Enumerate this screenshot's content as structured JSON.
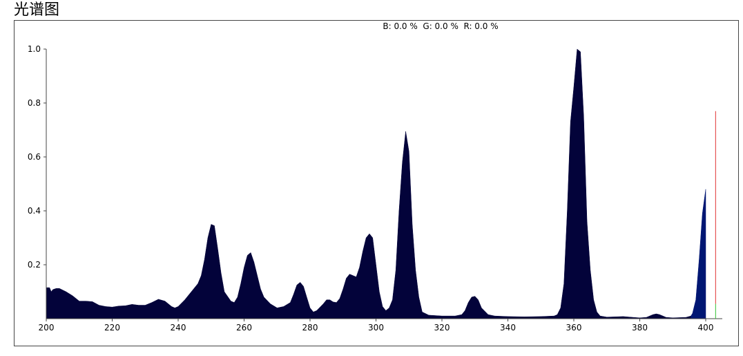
{
  "window_title": "光谱图",
  "chart_data": {
    "type": "area",
    "title": "",
    "xlabel": "",
    "ylabel": "",
    "readout": "B: 0.0 %  G: 0.0 %  R: 0.0 %",
    "xlim": [
      200,
      405
    ],
    "ylim": [
      0,
      1.0
    ],
    "xticks": [
      200,
      220,
      240,
      260,
      280,
      300,
      320,
      340,
      360,
      380,
      400
    ],
    "yticks": [
      0.2,
      0.4,
      0.6,
      0.8,
      1.0
    ],
    "grid": false,
    "colors": {
      "main": "#03033a",
      "blue_region": "#001673",
      "cursor": "#e03030",
      "cursor_base": "#30c030",
      "axis": "#444444"
    },
    "series": [
      {
        "color_key": "main",
        "points": [
          [
            200,
            0.115
          ],
          [
            201,
            0.115
          ],
          [
            201.5,
            0.1
          ],
          [
            202,
            0.108
          ],
          [
            203,
            0.112
          ],
          [
            204,
            0.112
          ],
          [
            206,
            0.1
          ],
          [
            208,
            0.085
          ],
          [
            210,
            0.065
          ],
          [
            212,
            0.065
          ],
          [
            214,
            0.063
          ],
          [
            216,
            0.05
          ],
          [
            218,
            0.045
          ],
          [
            220,
            0.043
          ],
          [
            222,
            0.047
          ],
          [
            224,
            0.048
          ],
          [
            226,
            0.053
          ],
          [
            228,
            0.05
          ],
          [
            230,
            0.05
          ],
          [
            232,
            0.06
          ],
          [
            234,
            0.072
          ],
          [
            236,
            0.065
          ],
          [
            238,
            0.045
          ],
          [
            239,
            0.04
          ],
          [
            240,
            0.045
          ],
          [
            242,
            0.07
          ],
          [
            244,
            0.1
          ],
          [
            246,
            0.13
          ],
          [
            247,
            0.16
          ],
          [
            248,
            0.22
          ],
          [
            249,
            0.3
          ],
          [
            250,
            0.35
          ],
          [
            251,
            0.345
          ],
          [
            252,
            0.26
          ],
          [
            253,
            0.17
          ],
          [
            254,
            0.1
          ],
          [
            256,
            0.065
          ],
          [
            257,
            0.06
          ],
          [
            258,
            0.08
          ],
          [
            259,
            0.13
          ],
          [
            260,
            0.19
          ],
          [
            261,
            0.235
          ],
          [
            262,
            0.245
          ],
          [
            263,
            0.21
          ],
          [
            264,
            0.16
          ],
          [
            265,
            0.11
          ],
          [
            266,
            0.08
          ],
          [
            268,
            0.055
          ],
          [
            270,
            0.04
          ],
          [
            272,
            0.045
          ],
          [
            274,
            0.06
          ],
          [
            275,
            0.09
          ],
          [
            276,
            0.125
          ],
          [
            277,
            0.135
          ],
          [
            278,
            0.12
          ],
          [
            279,
            0.08
          ],
          [
            280,
            0.04
          ],
          [
            281,
            0.025
          ],
          [
            282,
            0.03
          ],
          [
            284,
            0.055
          ],
          [
            285,
            0.07
          ],
          [
            286,
            0.07
          ],
          [
            287,
            0.062
          ],
          [
            288,
            0.06
          ],
          [
            289,
            0.075
          ],
          [
            290,
            0.11
          ],
          [
            291,
            0.15
          ],
          [
            292,
            0.165
          ],
          [
            293,
            0.16
          ],
          [
            294,
            0.155
          ],
          [
            295,
            0.19
          ],
          [
            296,
            0.25
          ],
          [
            297,
            0.3
          ],
          [
            298,
            0.315
          ],
          [
            299,
            0.3
          ],
          [
            300,
            0.2
          ],
          [
            301,
            0.1
          ],
          [
            302,
            0.045
          ],
          [
            303,
            0.03
          ],
          [
            304,
            0.04
          ],
          [
            305,
            0.07
          ],
          [
            306,
            0.18
          ],
          [
            307,
            0.4
          ],
          [
            308,
            0.58
          ],
          [
            309,
            0.695
          ],
          [
            310,
            0.62
          ],
          [
            311,
            0.35
          ],
          [
            312,
            0.18
          ],
          [
            313,
            0.08
          ],
          [
            314,
            0.025
          ],
          [
            316,
            0.013
          ],
          [
            320,
            0.01
          ],
          [
            324,
            0.01
          ],
          [
            326,
            0.015
          ],
          [
            327,
            0.03
          ],
          [
            328,
            0.06
          ],
          [
            329,
            0.08
          ],
          [
            330,
            0.083
          ],
          [
            331,
            0.07
          ],
          [
            332,
            0.04
          ],
          [
            334,
            0.015
          ],
          [
            336,
            0.01
          ],
          [
            340,
            0.008
          ],
          [
            345,
            0.007
          ],
          [
            350,
            0.008
          ],
          [
            354,
            0.01
          ],
          [
            355,
            0.015
          ],
          [
            356,
            0.04
          ],
          [
            357,
            0.13
          ],
          [
            358,
            0.4
          ],
          [
            359,
            0.73
          ],
          [
            360,
            0.86
          ],
          [
            361,
            1.0
          ],
          [
            362,
            0.99
          ],
          [
            363,
            0.75
          ],
          [
            364,
            0.36
          ],
          [
            365,
            0.18
          ],
          [
            366,
            0.07
          ],
          [
            367,
            0.025
          ],
          [
            368,
            0.01
          ],
          [
            370,
            0.006
          ],
          [
            375,
            0.008
          ],
          [
            378,
            0.005
          ],
          [
            380,
            0.003
          ],
          [
            382,
            0.005
          ],
          [
            384,
            0.015
          ],
          [
            385,
            0.018
          ],
          [
            386,
            0.015
          ],
          [
            388,
            0.005
          ],
          [
            390,
            0.003
          ],
          [
            394,
            0.005
          ],
          [
            395.5,
            0.01
          ]
        ]
      },
      {
        "color_key": "blue_region",
        "points": [
          [
            395.5,
            0.01
          ],
          [
            396,
            0.02
          ],
          [
            397,
            0.07
          ],
          [
            398,
            0.22
          ],
          [
            399,
            0.39
          ],
          [
            400,
            0.48
          ]
        ]
      }
    ],
    "cursor": {
      "x": 403,
      "top": 0.77,
      "base_top": 0.055
    }
  }
}
